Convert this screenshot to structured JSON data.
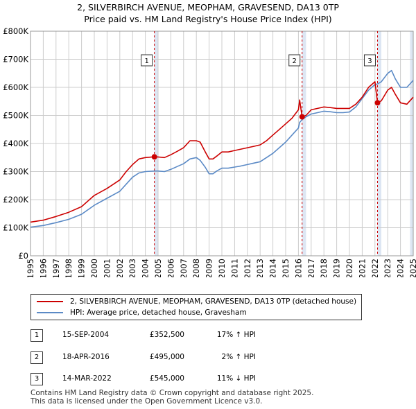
{
  "title_line1": "2, SILVERBIRCH AVENUE, MEOPHAM, GRAVESEND, DA13 0TP",
  "title_line2": "Price paid vs. HM Land Registry's House Price Index (HPI)",
  "colors": {
    "property": "#cc0000",
    "hpi": "#5b8ac6",
    "shade": "#dde6f3",
    "grid": "#cccccc",
    "vline": "#cc0000"
  },
  "chart_data": {
    "type": "line",
    "x_range": [
      1995,
      2025
    ],
    "ylim": [
      0,
      800000
    ],
    "yticks": [
      0,
      100000,
      200000,
      300000,
      400000,
      500000,
      600000,
      700000,
      800000
    ],
    "ytick_labels": [
      "£0",
      "£100K",
      "£200K",
      "£300K",
      "£400K",
      "£500K",
      "£600K",
      "£700K",
      "£800K"
    ],
    "xticks": [
      1995,
      1996,
      1997,
      1998,
      1999,
      2000,
      2001,
      2002,
      2003,
      2004,
      2005,
      2006,
      2007,
      2008,
      2009,
      2010,
      2011,
      2012,
      2013,
      2014,
      2015,
      2016,
      2017,
      2018,
      2019,
      2020,
      2021,
      2022,
      2023,
      2024,
      2025
    ],
    "xtick_labels": [
      "1995",
      "1996",
      "1997",
      "1998",
      "1999",
      "2000",
      "2001",
      "2002",
      "2003",
      "2004",
      "2005",
      "2006",
      "2007",
      "2008",
      "2009",
      "2010",
      "2011",
      "2012",
      "2013",
      "2014",
      "2015",
      "2016",
      "2017",
      "2018",
      "2019",
      "2020",
      "2021",
      "2022",
      "2023",
      "2024",
      "2025"
    ],
    "grid": true,
    "shaded_spans": [
      [
        2004.71,
        2005.0
      ],
      [
        2016.29,
        2016.6
      ],
      [
        2022.2,
        2022.5
      ],
      [
        2024.75,
        2025.0
      ]
    ],
    "series": [
      {
        "name": "2, SILVERBIRCH AVENUE, MEOPHAM, GRAVESEND, DA13 0TP (detached house)",
        "color": "#cc0000",
        "x": [
          1995.0,
          1996.0,
          1997.0,
          1998.0,
          1999.0,
          2000.0,
          2001.0,
          2002.0,
          2002.5,
          2003.0,
          2003.5,
          2004.0,
          2004.71,
          2005.0,
          2005.5,
          2006.0,
          2006.5,
          2007.0,
          2007.5,
          2008.0,
          2008.3,
          2008.7,
          2009.0,
          2009.3,
          2009.6,
          2010.0,
          2010.5,
          2011.0,
          2011.5,
          2012.0,
          2012.5,
          2013.0,
          2013.5,
          2014.0,
          2014.5,
          2015.0,
          2015.5,
          2016.0,
          2016.1,
          2016.29,
          2016.6,
          2017.0,
          2017.5,
          2018.0,
          2018.5,
          2019.0,
          2019.5,
          2020.0,
          2020.5,
          2021.0,
          2021.5,
          2022.0,
          2022.2,
          2022.5,
          2023.0,
          2023.3,
          2023.6,
          2024.0,
          2024.5,
          2025.0
        ],
        "values": [
          120000,
          127000,
          140000,
          155000,
          175000,
          215000,
          240000,
          270000,
          300000,
          325000,
          345000,
          350000,
          352500,
          352000,
          350000,
          360000,
          372000,
          385000,
          410000,
          410000,
          405000,
          370000,
          345000,
          345000,
          355000,
          370000,
          370000,
          375000,
          380000,
          385000,
          390000,
          395000,
          410000,
          430000,
          450000,
          470000,
          490000,
          520000,
          555000,
          495000,
          500000,
          520000,
          525000,
          530000,
          528000,
          525000,
          525000,
          525000,
          540000,
          565000,
          600000,
          620000,
          545000,
          552000,
          590000,
          600000,
          575000,
          545000,
          540000,
          565000
        ]
      },
      {
        "name": "HPI: Average price, detached house, Gravesham",
        "color": "#5b8ac6",
        "x": [
          1995.0,
          1996.0,
          1997.0,
          1998.0,
          1999.0,
          2000.0,
          2001.0,
          2002.0,
          2002.5,
          2003.0,
          2003.5,
          2004.0,
          2004.71,
          2005.0,
          2005.5,
          2006.0,
          2006.5,
          2007.0,
          2007.5,
          2008.0,
          2008.3,
          2008.7,
          2009.0,
          2009.3,
          2009.6,
          2010.0,
          2010.5,
          2011.0,
          2011.5,
          2012.0,
          2012.5,
          2013.0,
          2013.5,
          2014.0,
          2014.5,
          2015.0,
          2015.5,
          2016.0,
          2016.1,
          2016.29,
          2016.6,
          2017.0,
          2017.5,
          2018.0,
          2018.5,
          2019.0,
          2019.5,
          2020.0,
          2020.5,
          2021.0,
          2021.5,
          2022.0,
          2022.2,
          2022.5,
          2023.0,
          2023.3,
          2023.6,
          2024.0,
          2024.5,
          2025.0
        ],
        "values": [
          102000,
          108000,
          118000,
          130000,
          148000,
          180000,
          205000,
          230000,
          255000,
          280000,
          295000,
          300000,
          302000,
          302000,
          300000,
          308000,
          318000,
          328000,
          345000,
          350000,
          340000,
          315000,
          292000,
          292000,
          302000,
          312000,
          312000,
          316000,
          320000,
          325000,
          330000,
          335000,
          350000,
          365000,
          385000,
          405000,
          430000,
          455000,
          475000,
          485000,
          495000,
          505000,
          510000,
          515000,
          513000,
          510000,
          510000,
          512000,
          530000,
          560000,
          590000,
          610000,
          612000,
          620000,
          650000,
          660000,
          630000,
          600000,
          600000,
          625000
        ]
      }
    ],
    "sales": [
      {
        "label": "1",
        "x": 2004.71,
        "value": 352500
      },
      {
        "label": "2",
        "x": 2016.29,
        "value": 495000
      },
      {
        "label": "3",
        "x": 2022.2,
        "value": 545000
      }
    ]
  },
  "legend": {
    "property_label": "2, SILVERBIRCH AVENUE, MEOPHAM, GRAVESEND, DA13 0TP (detached house)",
    "hpi_label": "HPI: Average price, detached house, Gravesham"
  },
  "sales_table": [
    {
      "num": "1",
      "date": "15-SEP-2004",
      "price": "£352,500",
      "hpi": "17% ↑ HPI"
    },
    {
      "num": "2",
      "date": "18-APR-2016",
      "price": "£495,000",
      "hpi": "2% ↑ HPI"
    },
    {
      "num": "3",
      "date": "14-MAR-2022",
      "price": "£545,000",
      "hpi": "11% ↓ HPI"
    }
  ],
  "footer_line1": "Contains HM Land Registry data © Crown copyright and database right 2025.",
  "footer_line2": "This data is licensed under the Open Government Licence v3.0."
}
